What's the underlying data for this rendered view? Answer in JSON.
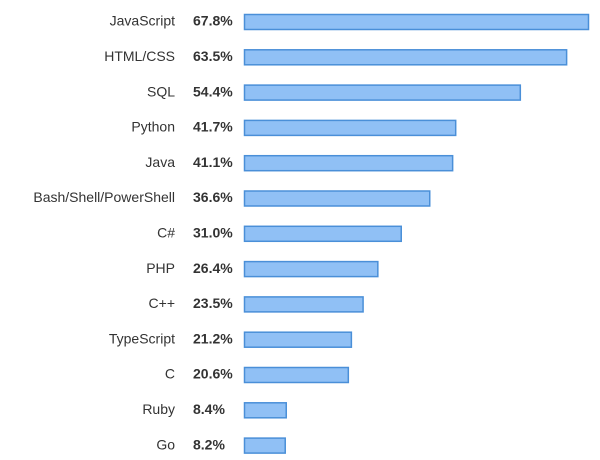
{
  "chart_data": {
    "type": "hbar",
    "categories": [
      "JavaScript",
      "HTML/CSS",
      "SQL",
      "Python",
      "Java",
      "Bash/Shell/PowerShell",
      "C#",
      "PHP",
      "C++",
      "TypeScript",
      "C",
      "Ruby",
      "Go"
    ],
    "values": [
      67.8,
      63.5,
      54.4,
      41.7,
      41.1,
      36.6,
      31.0,
      26.4,
      23.5,
      21.2,
      20.6,
      8.4,
      8.2
    ],
    "value_labels": [
      "67.8%",
      "63.5%",
      "54.4%",
      "41.7%",
      "41.1%",
      "36.6%",
      "31.0%",
      "26.4%",
      "23.5%",
      "21.2%",
      "20.6%",
      "8.4%",
      "8.2%"
    ],
    "color": "#90c0f5",
    "edge_color": "#4a8fd8"
  }
}
